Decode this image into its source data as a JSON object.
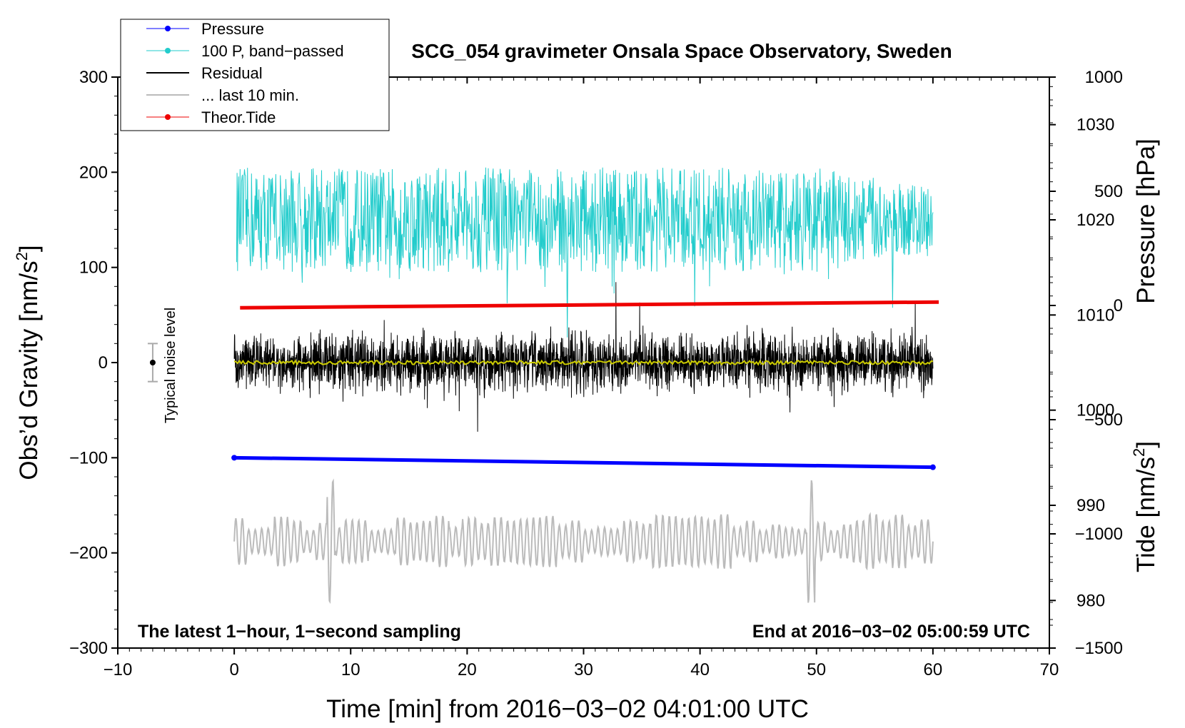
{
  "chart_data": {
    "type": "line",
    "title": "SCG_054 gravimeter Onsala Space Observatory, Sweden",
    "xlabel": "Time [min] from 2016−03−02 04:01:00 UTC",
    "ylabel_left": "Obs’d Gravity [nm/s",
    "ylabel_left_sup": "2",
    "ylabel_left_close": "]",
    "ylabel_right_pressure": "Pressure [hPa]",
    "ylabel_right_tide": "Tide [nm/s",
    "ylabel_right_tide_sup": "2",
    "ylabel_right_tide_close": "]",
    "xlim": [
      -10,
      70
    ],
    "ylim": [
      -300,
      300
    ],
    "pressure_lim": [
      975,
      1035
    ],
    "tide_lim": [
      -1500,
      1000
    ],
    "x_ticks": [
      "−10",
      "0",
      "10",
      "20",
      "30",
      "40",
      "50",
      "60",
      "70"
    ],
    "y_ticks": [
      "300",
      "200",
      "100",
      "0",
      "−100",
      "−200",
      "−300"
    ],
    "pressure_ticks": [
      "1030",
      "1020",
      "1010",
      "1000",
      "990",
      "980"
    ],
    "tide_ticks": [
      "1000",
      "500",
      "0",
      "−500",
      "−1000",
      "−1500"
    ],
    "annotation_left": "The latest 1−hour, 1−second sampling",
    "annotation_right": "End at 2016−03−02 05:00:59 UTC",
    "noise_label": "Typical noise level",
    "noise_level": {
      "x": -7,
      "center": 0,
      "half_range": 20
    },
    "legend": [
      {
        "label": "Pressure",
        "color": "#0000ff",
        "marker": true
      },
      {
        "label": "100 P, band−passed",
        "color": "#22cccc",
        "marker": true
      },
      {
        "label": "Residual",
        "color": "#000000",
        "marker": false
      },
      {
        "label": "... last 10 min.",
        "color": "#bbbbbb",
        "marker": false
      },
      {
        "label": "Theor.Tide",
        "color": "#ee0000",
        "marker": true
      }
    ],
    "series": [
      {
        "name": "Pressure",
        "axis": "pressure",
        "x": [
          0,
          60
        ],
        "values": [
          995.0,
          994.0
        ],
        "color": "#0000ff"
      },
      {
        "name": "100 P, band−passed",
        "axis": "gravity",
        "x_range": [
          0.2,
          60
        ],
        "center": 150,
        "amplitude": 55,
        "color": "#22cccc"
      },
      {
        "name": "Residual",
        "axis": "gravity",
        "x_range": [
          0,
          60
        ],
        "center": 0,
        "amplitude": 30,
        "color": "#000000"
      },
      {
        "name": "Residual smoothed",
        "axis": "gravity",
        "x_range": [
          0,
          60
        ],
        "center": 0,
        "amplitude": 2,
        "color": "#cccc00"
      },
      {
        "name": "... last 10 min.",
        "axis": "gravity",
        "x_range": [
          0,
          60
        ],
        "center": -188,
        "amplitude": 25,
        "color": "#bbbbbb"
      },
      {
        "name": "Theor.Tide",
        "axis": "tide",
        "x": [
          0.5,
          60.5
        ],
        "values": [
          -10,
          15
        ],
        "color": "#ee0000"
      }
    ]
  }
}
